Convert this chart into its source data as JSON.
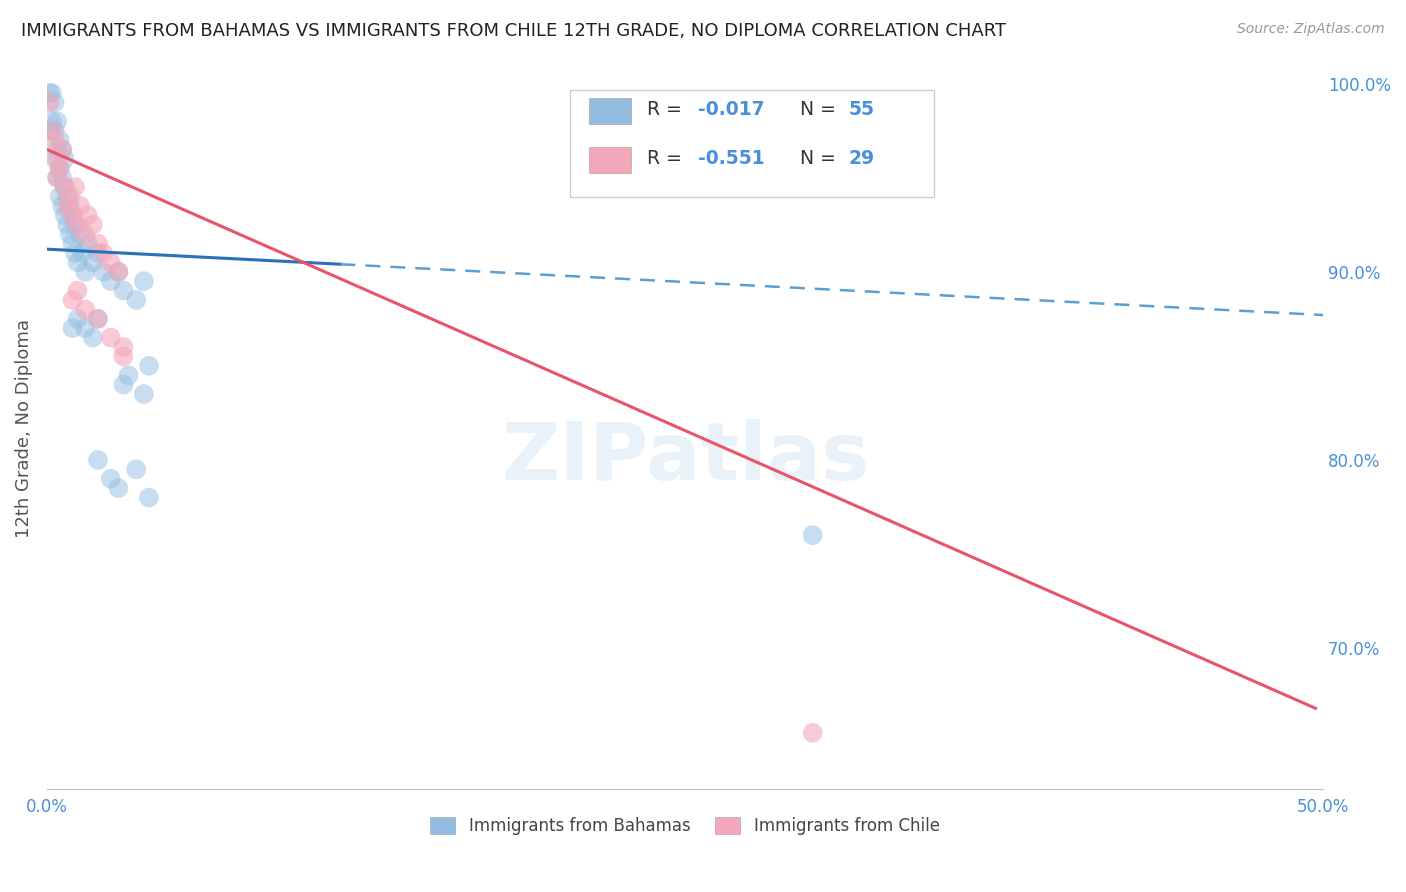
{
  "title": "IMMIGRANTS FROM BAHAMAS VS IMMIGRANTS FROM CHILE 12TH GRADE, NO DIPLOMA CORRELATION CHART",
  "source": "Source: ZipAtlas.com",
  "ylabel": "12th Grade, No Diploma",
  "xlim": [
    0.0,
    0.5
  ],
  "ylim": [
    0.625,
    1.008
  ],
  "y_ticks_right": [
    0.7,
    0.8,
    0.9,
    1.0
  ],
  "y_tick_labels_right": [
    "70.0%",
    "80.0%",
    "90.0%",
    "100.0%"
  ],
  "bahamas_color": "#92bde0",
  "chile_color": "#f4a7b9",
  "bahamas_scatter": {
    "x": [
      0.001,
      0.001,
      0.002,
      0.002,
      0.003,
      0.003,
      0.003,
      0.004,
      0.004,
      0.004,
      0.005,
      0.005,
      0.005,
      0.006,
      0.006,
      0.006,
      0.007,
      0.007,
      0.007,
      0.008,
      0.008,
      0.009,
      0.009,
      0.01,
      0.01,
      0.011,
      0.011,
      0.012,
      0.013,
      0.014,
      0.015,
      0.016,
      0.018,
      0.02,
      0.022,
      0.025,
      0.028,
      0.03,
      0.035,
      0.038,
      0.01,
      0.012,
      0.015,
      0.018,
      0.02,
      0.03,
      0.032,
      0.038,
      0.04,
      0.02,
      0.025,
      0.028,
      0.035,
      0.04,
      0.3
    ],
    "y": [
      0.995,
      0.975,
      0.98,
      0.995,
      0.96,
      0.975,
      0.99,
      0.95,
      0.965,
      0.98,
      0.94,
      0.955,
      0.97,
      0.935,
      0.95,
      0.965,
      0.93,
      0.945,
      0.96,
      0.925,
      0.94,
      0.92,
      0.935,
      0.915,
      0.93,
      0.91,
      0.925,
      0.905,
      0.92,
      0.91,
      0.9,
      0.915,
      0.905,
      0.91,
      0.9,
      0.895,
      0.9,
      0.89,
      0.885,
      0.895,
      0.87,
      0.875,
      0.87,
      0.865,
      0.875,
      0.84,
      0.845,
      0.835,
      0.85,
      0.8,
      0.79,
      0.785,
      0.795,
      0.78,
      0.76
    ]
  },
  "chile_scatter": {
    "x": [
      0.001,
      0.002,
      0.003,
      0.004,
      0.004,
      0.005,
      0.006,
      0.007,
      0.008,
      0.009,
      0.01,
      0.011,
      0.012,
      0.013,
      0.015,
      0.016,
      0.018,
      0.02,
      0.022,
      0.025,
      0.028,
      0.01,
      0.012,
      0.015,
      0.02,
      0.025,
      0.03,
      0.3,
      0.03
    ],
    "y": [
      0.99,
      0.975,
      0.97,
      0.96,
      0.95,
      0.955,
      0.965,
      0.945,
      0.935,
      0.94,
      0.93,
      0.945,
      0.925,
      0.935,
      0.92,
      0.93,
      0.925,
      0.915,
      0.91,
      0.905,
      0.9,
      0.885,
      0.89,
      0.88,
      0.875,
      0.865,
      0.86,
      0.655,
      0.855
    ]
  },
  "bahamas_trendline_solid": {
    "x": [
      0.0,
      0.115
    ],
    "y": [
      0.912,
      0.904
    ]
  },
  "bahamas_trendline_dashed": {
    "x": [
      0.115,
      0.5
    ],
    "y": [
      0.904,
      0.877
    ]
  },
  "chile_trendline": {
    "x": [
      0.0,
      0.497
    ],
    "y": [
      0.965,
      0.668
    ]
  },
  "watermark": "ZIPatlas",
  "background_color": "#ffffff",
  "grid_color": "#d8d8d8",
  "title_color": "#222222",
  "axis_label_color": "#4a90d9",
  "legend_r_color": "#4a90d9",
  "legend_text_color": "#333333"
}
